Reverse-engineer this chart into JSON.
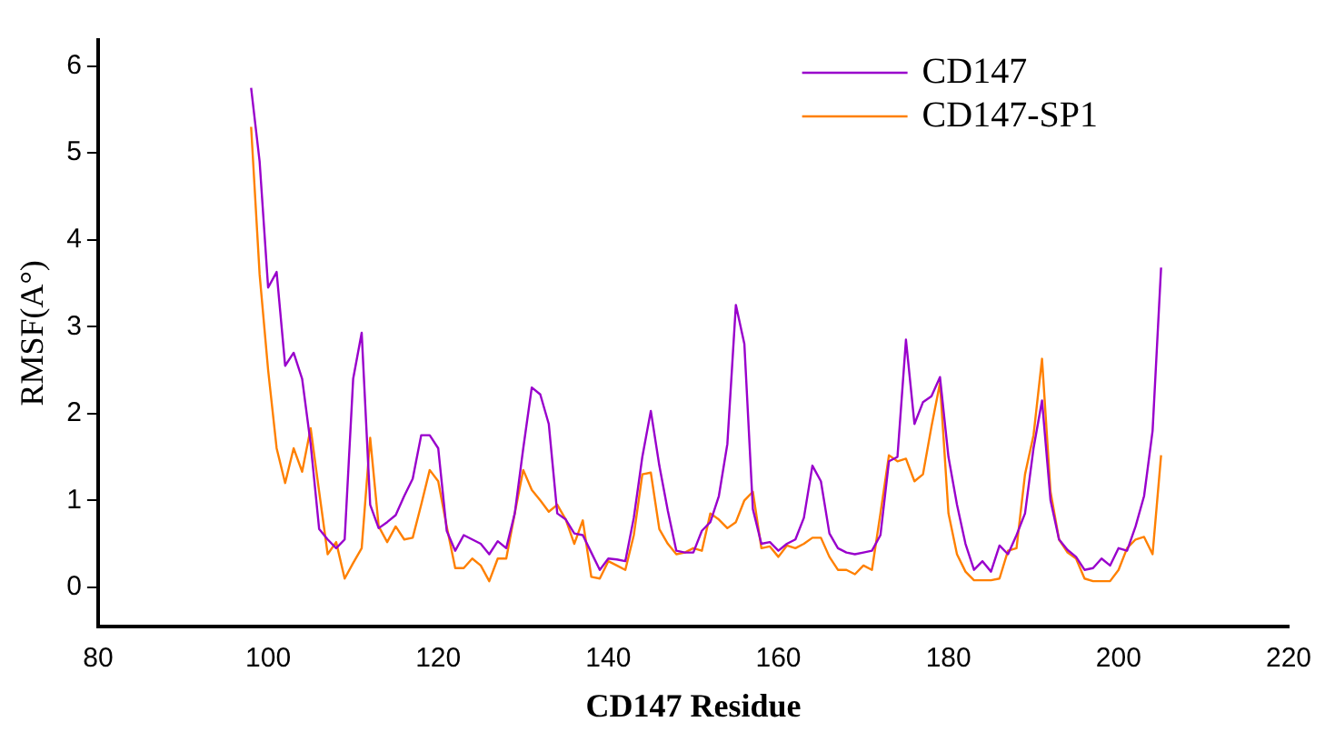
{
  "chart_data": {
    "type": "line",
    "xlabel": "CD147 Residue",
    "ylabel": "RMSF(A°)",
    "x": [
      98,
      99,
      100,
      101,
      102,
      103,
      104,
      105,
      106,
      107,
      108,
      109,
      110,
      111,
      112,
      113,
      114,
      115,
      116,
      117,
      118,
      119,
      120,
      121,
      122,
      123,
      124,
      125,
      126,
      127,
      128,
      129,
      130,
      131,
      132,
      133,
      134,
      135,
      136,
      137,
      138,
      139,
      140,
      141,
      142,
      143,
      144,
      145,
      146,
      147,
      148,
      149,
      150,
      151,
      152,
      153,
      154,
      155,
      156,
      157,
      158,
      159,
      160,
      161,
      162,
      163,
      164,
      165,
      166,
      167,
      168,
      169,
      170,
      171,
      172,
      173,
      174,
      175,
      176,
      177,
      178,
      179,
      180,
      181,
      182,
      183,
      184,
      185,
      186,
      187,
      188,
      189,
      190,
      191,
      192,
      193,
      194,
      195,
      196,
      197,
      198,
      199,
      200,
      201,
      202,
      203,
      204,
      205
    ],
    "series": [
      {
        "name": "CD147",
        "color": "#9900cc",
        "values": [
          5.75,
          4.9,
          3.45,
          3.63,
          2.55,
          2.7,
          2.4,
          1.65,
          0.67,
          0.55,
          0.45,
          0.55,
          2.4,
          2.93,
          0.95,
          0.68,
          0.75,
          0.83,
          1.05,
          1.25,
          1.75,
          1.75,
          1.6,
          0.65,
          0.42,
          0.6,
          0.55,
          0.5,
          0.38,
          0.53,
          0.45,
          0.85,
          1.6,
          2.3,
          2.22,
          1.88,
          0.85,
          0.78,
          0.62,
          0.6,
          0.4,
          0.2,
          0.33,
          0.32,
          0.3,
          0.8,
          1.5,
          2.03,
          1.4,
          0.88,
          0.42,
          0.4,
          0.4,
          0.65,
          0.75,
          1.05,
          1.65,
          3.25,
          2.8,
          0.9,
          0.5,
          0.52,
          0.42,
          0.5,
          0.55,
          0.8,
          1.4,
          1.22,
          0.62,
          0.45,
          0.4,
          0.38,
          0.4,
          0.42,
          0.6,
          1.45,
          1.5,
          2.85,
          1.88,
          2.13,
          2.2,
          2.42,
          1.5,
          0.95,
          0.5,
          0.2,
          0.3,
          0.18,
          0.48,
          0.38,
          0.6,
          0.85,
          1.6,
          2.15,
          1.0,
          0.55,
          0.43,
          0.35,
          0.2,
          0.22,
          0.33,
          0.25,
          0.45,
          0.42,
          0.7,
          1.05,
          1.8,
          3.68
        ]
      },
      {
        "name": "CD147-SP1",
        "color": "#ff8000",
        "values": [
          5.3,
          3.6,
          2.5,
          1.6,
          1.2,
          1.6,
          1.33,
          1.83,
          1.1,
          0.38,
          0.52,
          0.1,
          0.28,
          0.45,
          1.72,
          0.7,
          0.52,
          0.7,
          0.55,
          0.57,
          0.95,
          1.35,
          1.22,
          0.7,
          0.22,
          0.22,
          0.33,
          0.25,
          0.07,
          0.33,
          0.33,
          0.85,
          1.35,
          1.12,
          1.0,
          0.87,
          0.95,
          0.78,
          0.5,
          0.77,
          0.12,
          0.1,
          0.3,
          0.25,
          0.2,
          0.6,
          1.3,
          1.32,
          0.67,
          0.5,
          0.38,
          0.4,
          0.45,
          0.42,
          0.85,
          0.78,
          0.68,
          0.75,
          1.0,
          1.1,
          0.45,
          0.47,
          0.35,
          0.48,
          0.45,
          0.5,
          0.57,
          0.57,
          0.35,
          0.2,
          0.2,
          0.15,
          0.25,
          0.2,
          0.85,
          1.52,
          1.45,
          1.48,
          1.22,
          1.3,
          1.85,
          2.35,
          0.85,
          0.38,
          0.18,
          0.08,
          0.08,
          0.08,
          0.1,
          0.42,
          0.45,
          1.3,
          1.75,
          2.63,
          1.1,
          0.55,
          0.4,
          0.33,
          0.1,
          0.07,
          0.07,
          0.07,
          0.2,
          0.45,
          0.55,
          0.58,
          0.38,
          1.52
        ]
      }
    ],
    "xlim": [
      80,
      220
    ],
    "xticks": [
      80,
      100,
      120,
      140,
      160,
      180,
      200,
      220
    ],
    "ylim": [
      -0.45,
      6.3
    ],
    "yticks": [
      0,
      1,
      2,
      3,
      4,
      5,
      6
    ],
    "grid": false,
    "legend": "top right",
    "marker": "none",
    "line_style": "solid"
  }
}
